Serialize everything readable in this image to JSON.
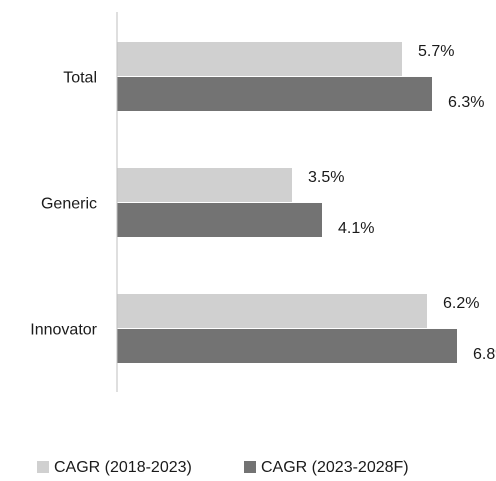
{
  "chart_data": {
    "type": "bar",
    "orientation": "horizontal",
    "categories": [
      "Total",
      "Generic",
      "Innovator"
    ],
    "series": [
      {
        "name": "CAGR (2018-2023)",
        "values": [
          5.7,
          3.5,
          6.2
        ],
        "labels": [
          "5.7%",
          "3.5%",
          "6.2%"
        ],
        "color": "#d0d0d0"
      },
      {
        "name": "CAGR (2023-2028F)",
        "values": [
          6.3,
          4.1,
          6.8
        ],
        "labels": [
          "6.3%",
          "4.1%",
          "6.8%"
        ],
        "color": "#737373"
      }
    ],
    "xlim": [
      0,
      7.4
    ],
    "grid": false,
    "legend_position": "bottom"
  }
}
